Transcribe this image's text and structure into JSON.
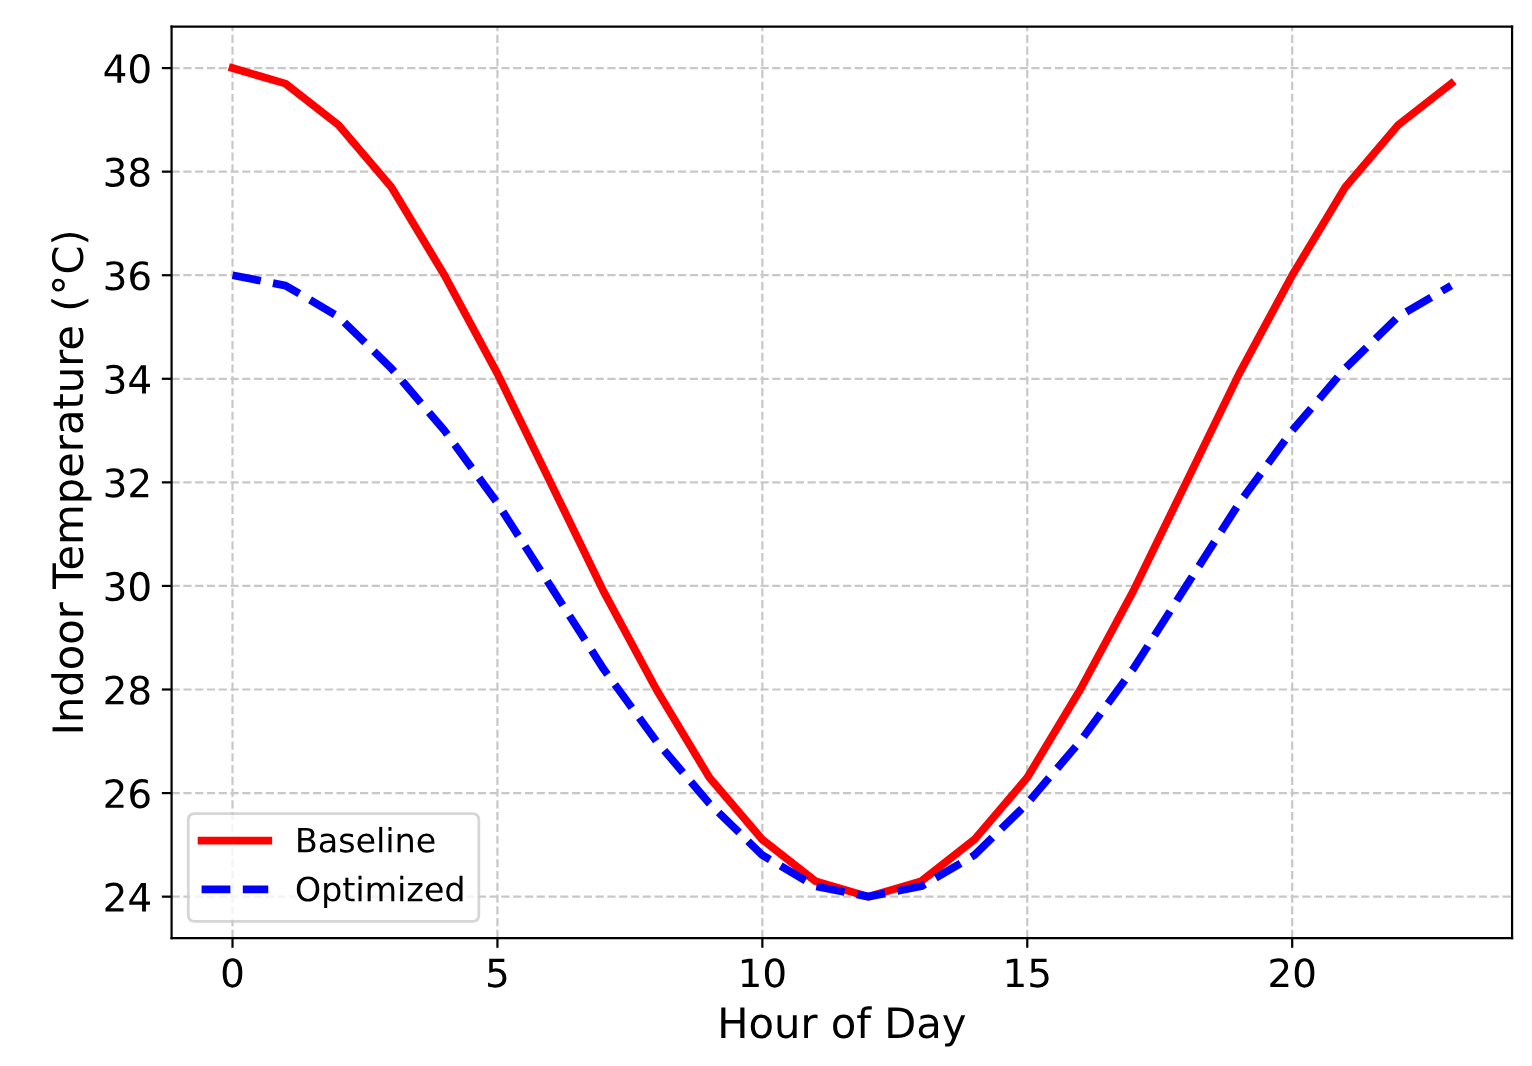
{
  "chart_data": {
    "type": "line",
    "xlabel": "Hour of Day",
    "ylabel": "Indoor Temperature (°C)",
    "x": [
      0,
      1,
      2,
      3,
      4,
      5,
      6,
      7,
      8,
      9,
      10,
      11,
      12,
      13,
      14,
      15,
      16,
      17,
      18,
      19,
      20,
      21,
      22,
      23
    ],
    "series": [
      {
        "name": "Baseline",
        "color": "#ff0000",
        "line_style": "solid",
        "values": [
          40.0,
          39.7,
          38.9,
          37.7,
          36.0,
          34.1,
          32.0,
          29.9,
          28.0,
          26.3,
          25.1,
          24.3,
          24.0,
          24.3,
          25.1,
          26.3,
          28.0,
          29.9,
          32.0,
          34.1,
          36.0,
          37.7,
          38.9,
          39.7
        ]
      },
      {
        "name": "Optimized",
        "color": "#0000ff",
        "line_style": "dashed",
        "values": [
          36.0,
          35.8,
          35.2,
          34.2,
          33.0,
          31.6,
          30.0,
          28.4,
          27.0,
          25.8,
          24.8,
          24.2,
          24.0,
          24.2,
          24.8,
          25.8,
          27.0,
          28.4,
          30.0,
          31.6,
          33.0,
          34.2,
          35.2,
          35.8
        ]
      }
    ],
    "xlim": [
      -1.15,
      24.15
    ],
    "xticks": [
      0,
      5,
      10,
      15,
      20
    ],
    "ylim": [
      23.2,
      40.8
    ],
    "yticks": [
      24,
      26,
      28,
      30,
      32,
      34,
      36,
      38,
      40
    ],
    "grid": true,
    "legend": "bottom left"
  }
}
